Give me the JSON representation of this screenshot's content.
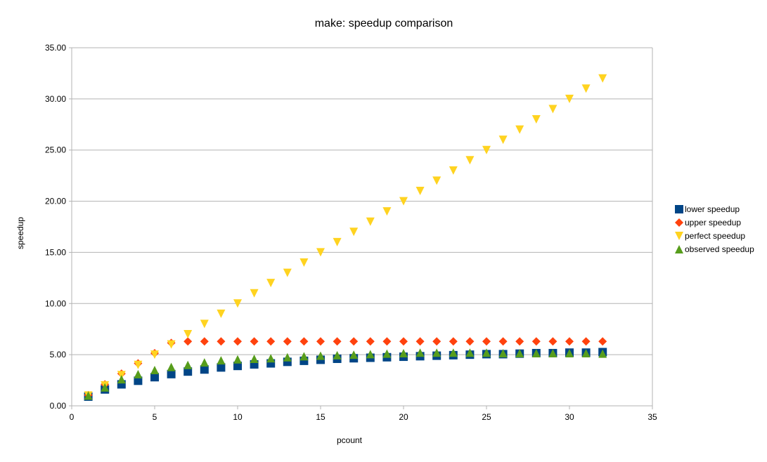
{
  "chart_data": {
    "type": "scatter",
    "title": "make: speedup comparison",
    "xlabel": "pcount",
    "ylabel": "speedup",
    "xlim": [
      0,
      35
    ],
    "ylim": [
      0,
      35
    ],
    "xticks": [
      0,
      5,
      10,
      15,
      20,
      25,
      30,
      35
    ],
    "xtick_labels": [
      "0",
      "5",
      "10",
      "15",
      "20",
      "25",
      "30",
      "35"
    ],
    "yticks": [
      0,
      5,
      10,
      15,
      20,
      25,
      30,
      35
    ],
    "ytick_labels": [
      "0.00",
      "5.00",
      "10.00",
      "15.00",
      "20.00",
      "25.00",
      "30.00",
      "35.00"
    ],
    "grid": "horizontal",
    "legend_position": "right",
    "x": [
      1,
      2,
      3,
      4,
      5,
      6,
      7,
      8,
      9,
      10,
      11,
      12,
      13,
      14,
      15,
      16,
      17,
      18,
      19,
      20,
      21,
      22,
      23,
      24,
      25,
      26,
      27,
      28,
      29,
      30,
      31,
      32
    ],
    "series": [
      {
        "name": "lower speedup",
        "color": "#004586",
        "marker": "square",
        "values": [
          0.9,
          1.6,
          2.1,
          2.45,
          2.8,
          3.1,
          3.35,
          3.55,
          3.75,
          3.9,
          4.05,
          4.15,
          4.3,
          4.4,
          4.5,
          4.6,
          4.65,
          4.7,
          4.75,
          4.8,
          4.85,
          4.9,
          4.95,
          5.0,
          5.05,
          5.05,
          5.1,
          5.15,
          5.15,
          5.2,
          5.2,
          5.25
        ]
      },
      {
        "name": "upper speedup",
        "color": "#ff420e",
        "marker": "diamond",
        "values": [
          1.05,
          2.1,
          3.15,
          4.15,
          5.15,
          6.15,
          6.3,
          6.3,
          6.3,
          6.3,
          6.3,
          6.3,
          6.3,
          6.3,
          6.3,
          6.3,
          6.3,
          6.3,
          6.3,
          6.3,
          6.3,
          6.3,
          6.3,
          6.3,
          6.3,
          6.3,
          6.3,
          6.3,
          6.3,
          6.3,
          6.3,
          6.3
        ]
      },
      {
        "name": "perfect speedup",
        "color": "#ffd320",
        "marker": "triangle-down",
        "values": [
          1,
          2,
          3,
          4,
          5,
          6,
          7,
          8,
          9,
          10,
          11,
          12,
          13,
          14,
          15,
          16,
          17,
          18,
          19,
          20,
          21,
          22,
          23,
          24,
          25,
          26,
          27,
          28,
          29,
          30,
          31,
          32
        ]
      },
      {
        "name": "observed speedup",
        "color": "#579d1c",
        "marker": "triangle-up",
        "values": [
          1.0,
          1.8,
          2.6,
          3.1,
          3.5,
          3.8,
          4.0,
          4.25,
          4.45,
          4.55,
          4.6,
          4.65,
          4.75,
          4.85,
          4.9,
          4.95,
          5.0,
          5.05,
          5.1,
          5.15,
          5.2,
          5.2,
          5.2,
          5.2,
          5.2,
          5.15,
          5.15,
          5.15,
          5.15,
          5.15,
          5.15,
          5.1
        ]
      }
    ]
  }
}
